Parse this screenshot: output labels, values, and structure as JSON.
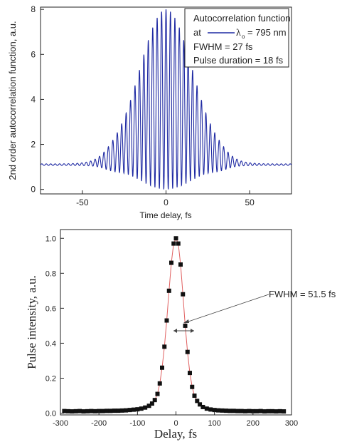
{
  "chart_data": [
    {
      "type": "line",
      "xlabel": "Time delay, fs",
      "ylabel": "2nd order autocorrelation function, a.u.",
      "xlim": [
        -75,
        75
      ],
      "ylim": [
        -0.2,
        8.1
      ],
      "xticks": [
        -50,
        0,
        50
      ],
      "yticks": [
        0,
        2,
        4,
        6,
        8
      ],
      "grid": false,
      "legend_position": "top-right",
      "legend": {
        "title": "Autocorrelation function",
        "entry_prefix": "at",
        "entry_symbol": "λ",
        "entry_subscript": "o",
        "entry_value": "= 795 nm",
        "lines": [
          "FWHM = 27 fs",
          "Pulse duration = 18 fs"
        ]
      },
      "series": [
        {
          "color": "#1f2aa3",
          "model": "interferometric autocorrelation fringes: background 1.1, peak 8, fringe period ~2.65 fs",
          "background": 1.1,
          "peak": 8,
          "fringe_period_fs": 2.65,
          "fwhm_fs": 27
        }
      ]
    },
    {
      "type": "scatter",
      "xlabel": "Delay, fs",
      "ylabel": "Pulse intensity, a.u.",
      "xlim": [
        -300,
        300
      ],
      "ylim": [
        -0.01,
        1.05
      ],
      "xticks": [
        -300,
        -200,
        -100,
        0,
        100,
        200,
        300
      ],
      "yticks": [
        0.0,
        0.2,
        0.4,
        0.6,
        0.8,
        1.0
      ],
      "grid": false,
      "annotation": "FWHM = 51.5 fs",
      "series": [
        {
          "marker": "square",
          "color": "#111111",
          "fit_line_color": "#e06060",
          "x": [
            -290,
            -280,
            -270,
            -260,
            -250,
            -240,
            -230,
            -220,
            -210,
            -200,
            -190,
            -180,
            -170,
            -160,
            -150,
            -140,
            -130,
            -120,
            -110,
            -100,
            -90,
            -80,
            -70,
            -62,
            -55,
            -48,
            -42,
            -36,
            -30,
            -24,
            -18,
            -12,
            -6,
            0,
            6,
            12,
            18,
            24,
            30,
            36,
            42,
            48,
            55,
            62,
            70,
            80,
            90,
            100,
            110,
            120,
            130,
            140,
            150,
            160,
            170,
            180,
            190,
            200,
            210,
            220,
            230,
            240,
            250,
            260,
            270,
            280
          ],
          "y": [
            0.012,
            0.011,
            0.01,
            0.011,
            0.012,
            0.01,
            0.011,
            0.012,
            0.011,
            0.012,
            0.012,
            0.013,
            0.013,
            0.014,
            0.014,
            0.015,
            0.016,
            0.018,
            0.02,
            0.022,
            0.026,
            0.032,
            0.042,
            0.055,
            0.075,
            0.11,
            0.17,
            0.26,
            0.38,
            0.53,
            0.7,
            0.86,
            0.97,
            1.0,
            0.97,
            0.85,
            0.68,
            0.5,
            0.35,
            0.23,
            0.15,
            0.1,
            0.07,
            0.05,
            0.035,
            0.026,
            0.021,
            0.018,
            0.016,
            0.015,
            0.014,
            0.013,
            0.013,
            0.012,
            0.012,
            0.011,
            0.012,
            0.011,
            0.011,
            0.012,
            0.01,
            0.011,
            0.011,
            0.01,
            0.011,
            0.01
          ]
        }
      ]
    }
  ]
}
